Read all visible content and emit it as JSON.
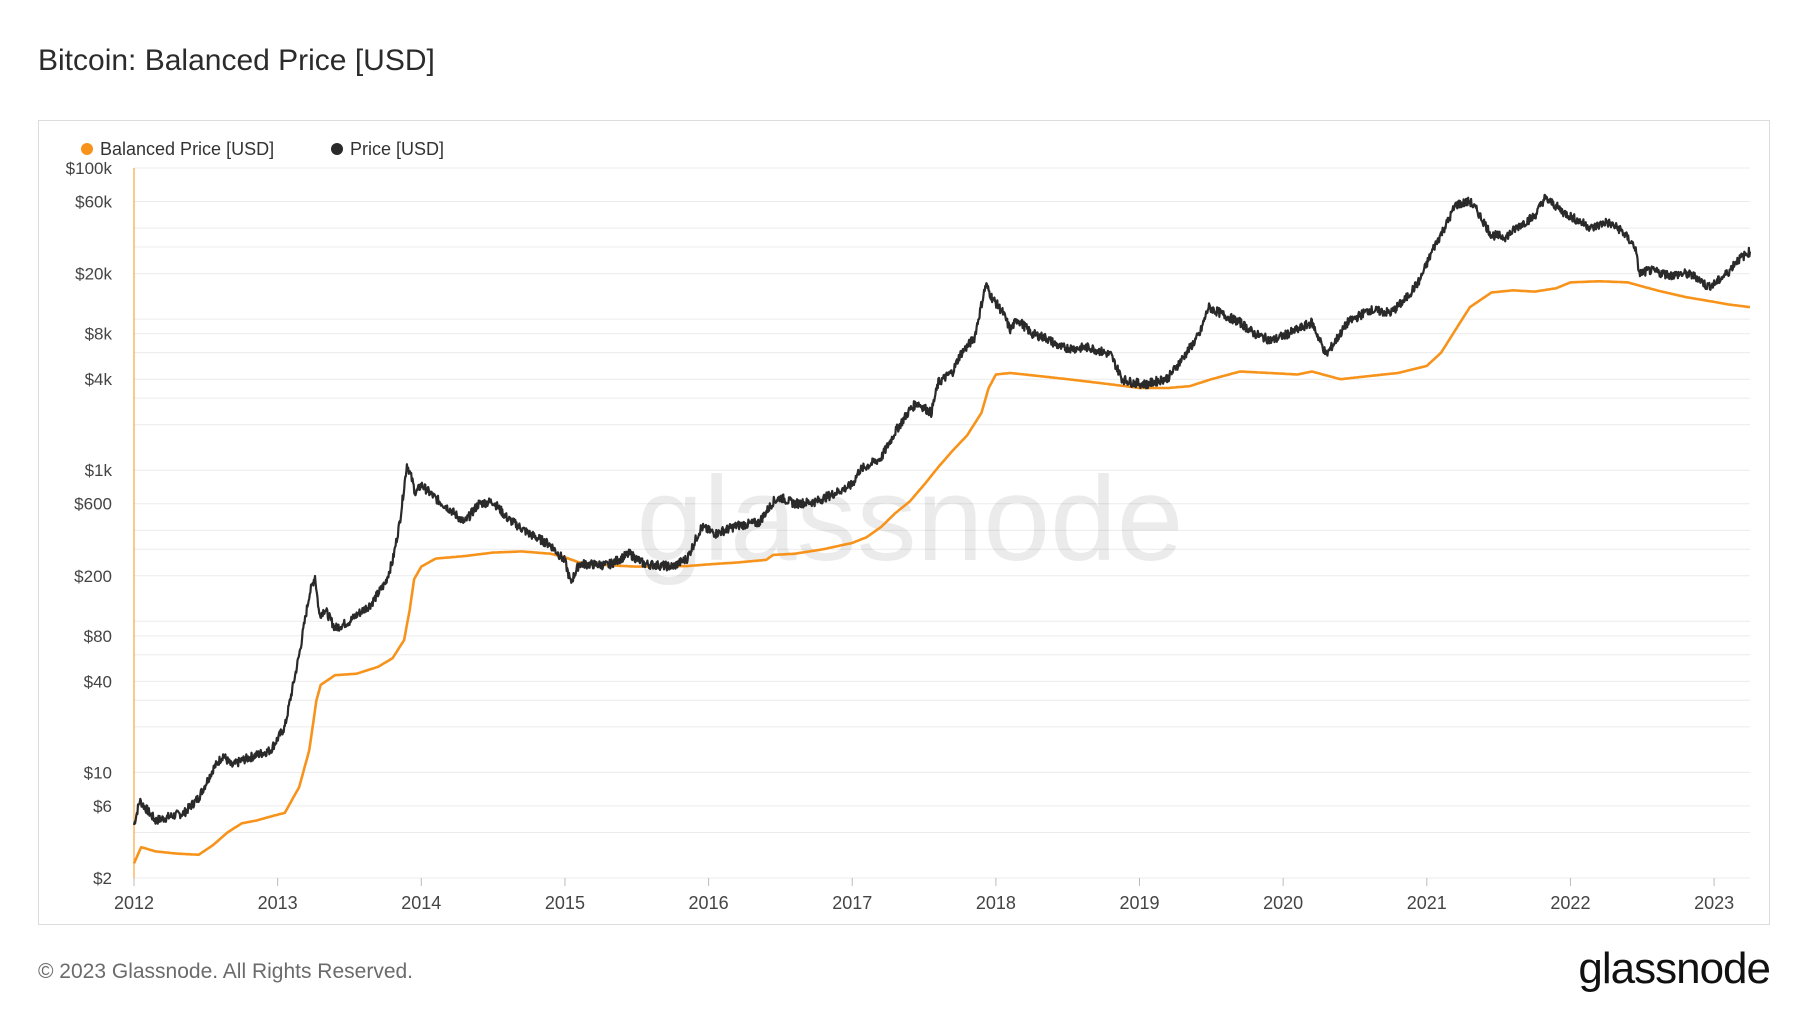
{
  "title": "Bitcoin: Balanced Price [USD]",
  "footer": "© 2023 Glassnode. All Rights Reserved.",
  "logo": "glassnode",
  "watermark": "glassnode",
  "colors": {
    "balanced": "#f7931a",
    "price": "#2a2a2a",
    "grid": "#ececec",
    "axis": "#f7931a"
  },
  "chart_data": {
    "type": "line",
    "title": "Bitcoin: Balanced Price [USD]",
    "xlabel": "",
    "ylabel": "",
    "yscale": "log",
    "ylim": [
      2,
      100000
    ],
    "xlim": [
      2012.0,
      2023.25
    ],
    "grid": true,
    "legend_position": "top-left",
    "x_ticks": [
      "2012",
      "2013",
      "2014",
      "2015",
      "2016",
      "2017",
      "2018",
      "2019",
      "2020",
      "2021",
      "2022",
      "2023"
    ],
    "y_ticks": [
      {
        "value": 2,
        "label": "$2"
      },
      {
        "value": 6,
        "label": "$6"
      },
      {
        "value": 10,
        "label": "$10"
      },
      {
        "value": 40,
        "label": "$40"
      },
      {
        "value": 80,
        "label": "$80"
      },
      {
        "value": 200,
        "label": "$200"
      },
      {
        "value": 600,
        "label": "$600"
      },
      {
        "value": 1000,
        "label": "$1k"
      },
      {
        "value": 4000,
        "label": "$4k"
      },
      {
        "value": 8000,
        "label": "$8k"
      },
      {
        "value": 20000,
        "label": "$20k"
      },
      {
        "value": 60000,
        "label": "$60k"
      },
      {
        "value": 100000,
        "label": "$100k"
      }
    ],
    "series": [
      {
        "name": "Balanced Price [USD]",
        "color": "#f7931a",
        "x": [
          2012.0,
          2012.05,
          2012.15,
          2012.3,
          2012.45,
          2012.55,
          2012.65,
          2012.75,
          2012.85,
          2012.95,
          2013.05,
          2013.15,
          2013.22,
          2013.27,
          2013.3,
          2013.4,
          2013.55,
          2013.7,
          2013.8,
          2013.88,
          2013.92,
          2013.95,
          2014.0,
          2014.1,
          2014.3,
          2014.5,
          2014.7,
          2014.9,
          2015.0,
          2015.1,
          2015.3,
          2015.5,
          2015.7,
          2015.85,
          2016.0,
          2016.2,
          2016.4,
          2016.45,
          2016.6,
          2016.8,
          2017.0,
          2017.1,
          2017.2,
          2017.3,
          2017.4,
          2017.5,
          2017.6,
          2017.7,
          2017.8,
          2017.9,
          2017.95,
          2018.0,
          2018.1,
          2018.3,
          2018.5,
          2018.7,
          2018.9,
          2019.0,
          2019.2,
          2019.35,
          2019.5,
          2019.7,
          2019.9,
          2020.1,
          2020.2,
          2020.4,
          2020.6,
          2020.8,
          2021.0,
          2021.1,
          2021.2,
          2021.3,
          2021.45,
          2021.6,
          2021.75,
          2021.9,
          2022.0,
          2022.2,
          2022.4,
          2022.6,
          2022.8,
          2023.0,
          2023.1,
          2023.25
        ],
        "values": [
          2.5,
          3.2,
          3.0,
          2.9,
          2.85,
          3.3,
          4.0,
          4.6,
          4.8,
          5.1,
          5.4,
          8.0,
          14,
          30,
          38,
          44,
          45,
          50,
          57,
          75,
          120,
          190,
          230,
          260,
          270,
          285,
          290,
          280,
          265,
          245,
          235,
          230,
          232,
          232,
          238,
          245,
          255,
          275,
          280,
          300,
          330,
          360,
          420,
          520,
          620,
          800,
          1050,
          1350,
          1700,
          2400,
          3500,
          4300,
          4400,
          4200,
          4000,
          3800,
          3600,
          3500,
          3500,
          3600,
          4000,
          4500,
          4400,
          4300,
          4500,
          4000,
          4200,
          4400,
          4900,
          6000,
          8500,
          12000,
          15000,
          15500,
          15200,
          16000,
          17500,
          17800,
          17500,
          15500,
          14000,
          13000,
          12500,
          12000
        ]
      },
      {
        "name": "Price [USD]",
        "color": "#2a2a2a",
        "x": [
          2012.0,
          2012.04,
          2012.1,
          2012.15,
          2012.25,
          2012.35,
          2012.45,
          2012.55,
          2012.62,
          2012.68,
          2012.75,
          2012.85,
          2012.95,
          2013.05,
          2013.15,
          2013.22,
          2013.26,
          2013.29,
          2013.33,
          2013.4,
          2013.5,
          2013.55,
          2013.65,
          2013.75,
          2013.8,
          2013.85,
          2013.9,
          2013.93,
          2013.96,
          2014.0,
          2014.1,
          2014.2,
          2014.3,
          2014.4,
          2014.5,
          2014.6,
          2014.75,
          2014.9,
          2015.0,
          2015.04,
          2015.1,
          2015.3,
          2015.45,
          2015.55,
          2015.65,
          2015.75,
          2015.85,
          2015.95,
          2016.05,
          2016.2,
          2016.35,
          2016.45,
          2016.5,
          2016.6,
          2016.75,
          2016.9,
          2017.0,
          2017.05,
          2017.2,
          2017.3,
          2017.4,
          2017.45,
          2017.55,
          2017.6,
          2017.7,
          2017.75,
          2017.85,
          2017.93,
          2017.97,
          2018.05,
          2018.1,
          2018.15,
          2018.25,
          2018.35,
          2018.45,
          2018.55,
          2018.65,
          2018.8,
          2018.88,
          2018.95,
          2019.05,
          2019.2,
          2019.3,
          2019.42,
          2019.48,
          2019.6,
          2019.7,
          2019.8,
          2019.92,
          2020.1,
          2020.2,
          2020.3,
          2020.45,
          2020.6,
          2020.75,
          2020.85,
          2020.95,
          2021.05,
          2021.15,
          2021.2,
          2021.3,
          2021.35,
          2021.45,
          2021.55,
          2021.65,
          2021.75,
          2021.82,
          2021.88,
          2021.95,
          2022.05,
          2022.15,
          2022.25,
          2022.35,
          2022.45,
          2022.48,
          2022.55,
          2022.7,
          2022.8,
          2022.88,
          2022.95,
          2023.0,
          2023.1,
          2023.15,
          2023.25
        ],
        "values": [
          4.5,
          6.5,
          5.5,
          4.8,
          5.1,
          5.4,
          6.8,
          10.5,
          13,
          11,
          12,
          13,
          14,
          20,
          60,
          150,
          200,
          110,
          120,
          90,
          100,
          110,
          130,
          180,
          250,
          450,
          1100,
          900,
          700,
          800,
          650,
          550,
          450,
          600,
          620,
          480,
          380,
          320,
          250,
          180,
          240,
          235,
          280,
          240,
          235,
          230,
          260,
          420,
          380,
          430,
          450,
          620,
          660,
          600,
          620,
          720,
          800,
          1000,
          1200,
          1800,
          2500,
          2800,
          2400,
          3800,
          4500,
          5800,
          7500,
          17000,
          14000,
          11000,
          8500,
          10000,
          8000,
          7500,
          6500,
          6400,
          6500,
          5800,
          4000,
          3800,
          3700,
          4100,
          5500,
          8000,
          12000,
          10500,
          9500,
          8000,
          7200,
          8500,
          9500,
          5800,
          9500,
          11500,
          11000,
          13500,
          18000,
          30000,
          45000,
          57000,
          60000,
          52000,
          36000,
          35000,
          42000,
          48000,
          63000,
          58000,
          51000,
          45000,
          40000,
          44000,
          39000,
          30000,
          20000,
          21000,
          19500,
          20000,
          19000,
          16500,
          17000,
          20500,
          24000,
          28000
        ]
      }
    ]
  },
  "legend": [
    {
      "label": "Balanced Price [USD]",
      "color": "#f7931a"
    },
    {
      "label": "Price [USD]",
      "color": "#2a2a2a"
    }
  ]
}
